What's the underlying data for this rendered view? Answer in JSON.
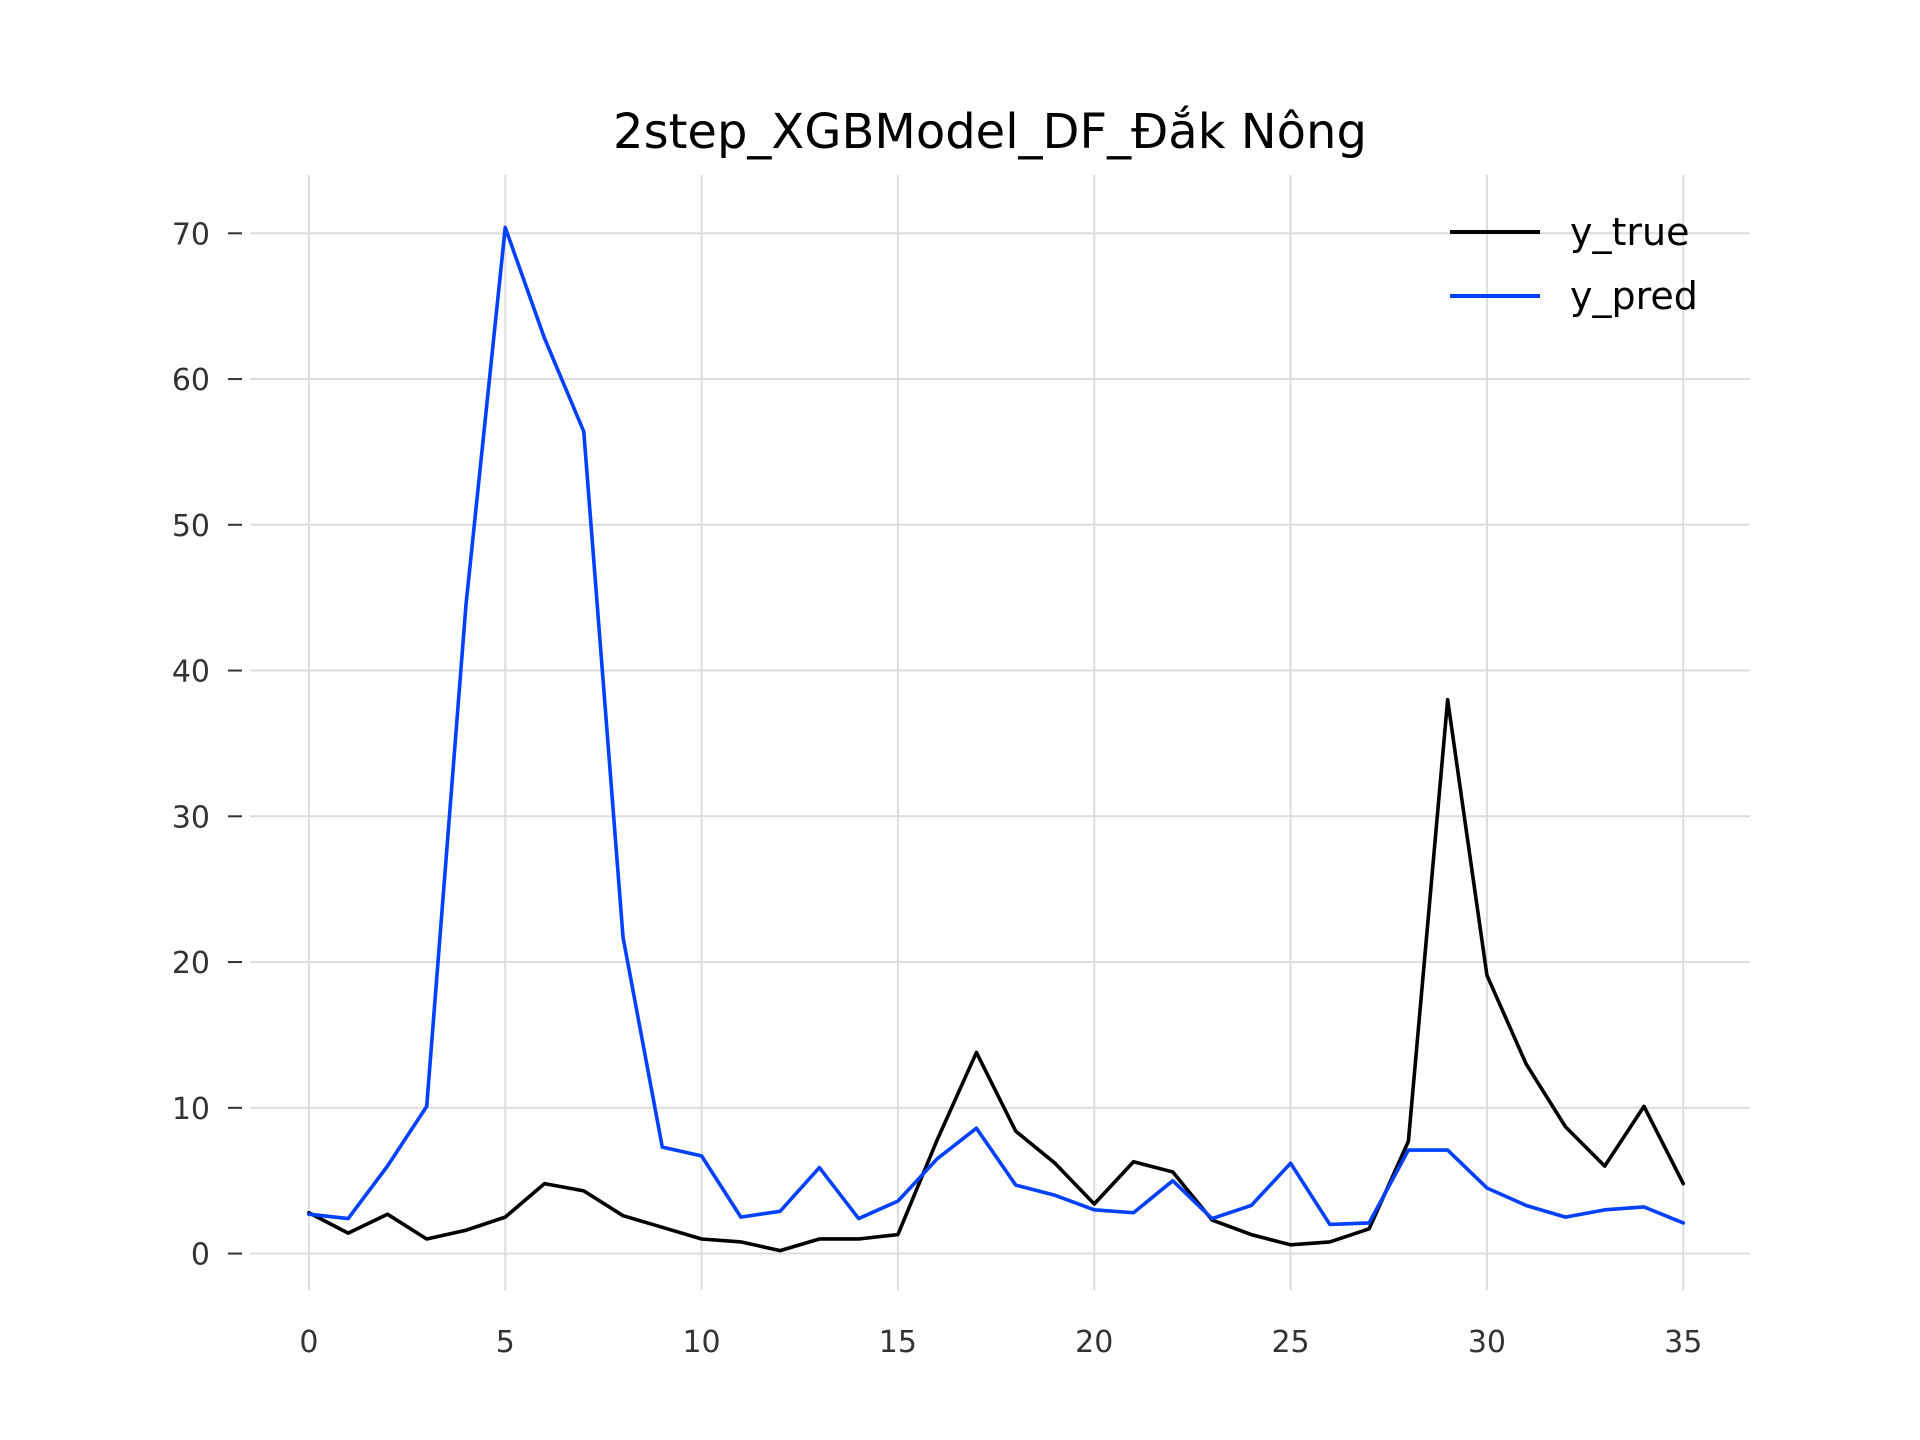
{
  "chart_data": {
    "type": "line",
    "title": "2step_XGBModel_DF_Đắk Nông",
    "xlabel": "",
    "ylabel": "",
    "x": [
      0,
      1,
      2,
      3,
      4,
      5,
      6,
      7,
      8,
      9,
      10,
      11,
      12,
      13,
      14,
      15,
      16,
      17,
      18,
      19,
      20,
      21,
      22,
      23,
      24,
      25,
      26,
      27,
      28,
      29,
      30,
      31,
      32,
      33,
      34,
      35
    ],
    "xlim": [
      -1.5,
      36.7
    ],
    "ylim": [
      -2.5,
      74.0
    ],
    "xticks": [
      0,
      5,
      10,
      15,
      20,
      25,
      30,
      35
    ],
    "yticks": [
      0,
      10,
      20,
      30,
      40,
      50,
      60,
      70
    ],
    "grid": true,
    "legend_position": "top-right",
    "series": [
      {
        "name": "y_true",
        "color": "#000000",
        "values": [
          2.8,
          1.4,
          2.7,
          1.0,
          1.6,
          2.5,
          4.8,
          4.3,
          2.6,
          1.8,
          1.0,
          0.8,
          0.2,
          1.0,
          1.0,
          1.3,
          7.8,
          13.8,
          8.4,
          6.2,
          3.4,
          6.3,
          5.6,
          2.3,
          1.3,
          0.6,
          0.8,
          1.7,
          7.7,
          38.0,
          19.1,
          13.0,
          8.7,
          6.0,
          10.1,
          4.8
        ]
      },
      {
        "name": "y_pred",
        "color": "#0040ff",
        "values": [
          2.7,
          2.4,
          6.0,
          10.1,
          44.5,
          70.4,
          62.8,
          56.4,
          21.7,
          7.3,
          6.7,
          2.5,
          2.9,
          5.9,
          2.4,
          3.6,
          6.5,
          8.6,
          4.7,
          4.0,
          3.0,
          2.8,
          5.0,
          2.4,
          3.3,
          6.2,
          2.0,
          2.1,
          7.1,
          7.1,
          4.5,
          3.3,
          2.5,
          3.0,
          3.2,
          2.1
        ]
      }
    ]
  }
}
